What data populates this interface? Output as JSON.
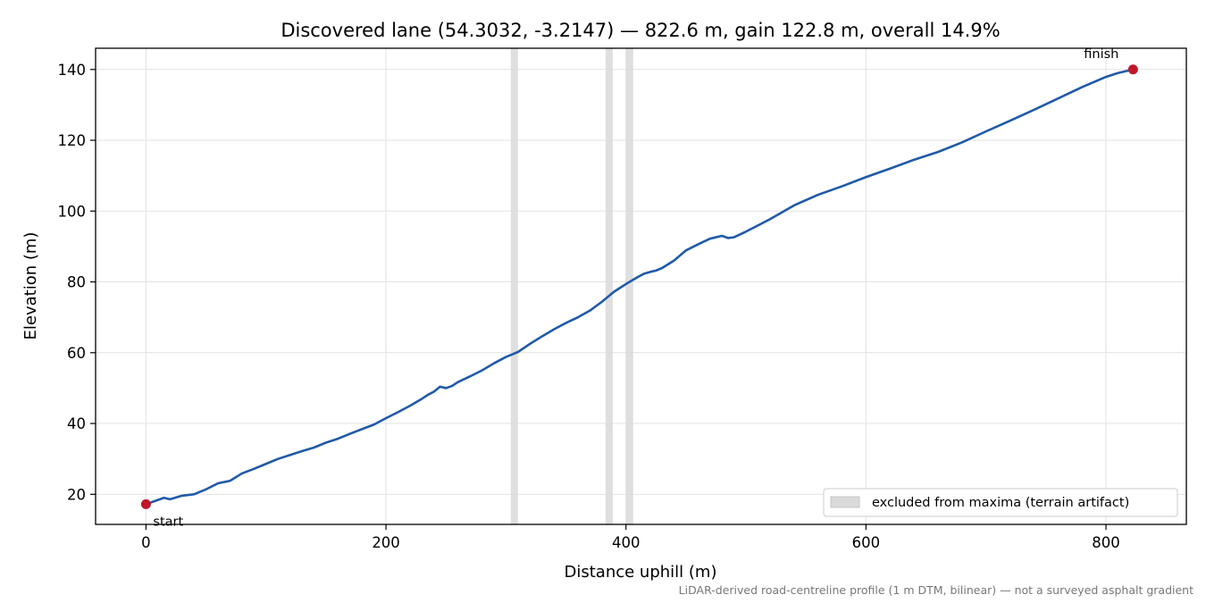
{
  "chart_data": {
    "type": "line",
    "title": "Discovered lane (54.3032, -3.2147) — 822.6 m, gain 122.8 m, overall 14.9%",
    "xlabel": "Distance uphill (m)",
    "ylabel": "Elevation (m)",
    "xlim": [
      -42,
      867
    ],
    "ylim": [
      11.5,
      146
    ],
    "xticks": [
      0,
      200,
      400,
      600,
      800
    ],
    "yticks": [
      20,
      40,
      60,
      80,
      100,
      120,
      140
    ],
    "grid": true,
    "legend": {
      "placement": "lower-right",
      "entries": [
        "excluded from maxima (terrain artifact)"
      ]
    },
    "footnote": "LiDAR-derived road-centreline profile (1 m DTM, bilinear) — not a surveyed asphalt gradient",
    "colors": {
      "line": "#1f5aa8",
      "endpoint": "#c0182a",
      "excluded_band": "#d9d9d9",
      "grid": "#e2e2e2"
    },
    "excluded_ranges": [
      [
        304,
        310
      ],
      [
        383,
        389
      ],
      [
        400,
        406
      ]
    ],
    "endpoints": [
      {
        "label": "start",
        "x": 0,
        "y": 17.2
      },
      {
        "label": "finish",
        "x": 822.6,
        "y": 140.0
      }
    ],
    "series": [
      {
        "x": [
          0,
          10,
          15,
          20,
          30,
          40,
          50,
          60,
          70,
          80,
          90,
          100,
          110,
          120,
          130,
          140,
          150,
          160,
          170,
          180,
          190,
          200,
          210,
          220,
          230,
          235,
          240,
          245,
          250,
          255,
          260,
          270,
          280,
          290,
          300,
          305,
          310,
          320,
          330,
          340,
          350,
          360,
          370,
          380,
          390,
          400,
          410,
          415,
          420,
          425,
          430,
          440,
          450,
          460,
          470,
          480,
          485,
          490,
          500,
          520,
          540,
          560,
          580,
          600,
          620,
          640,
          660,
          680,
          700,
          720,
          740,
          760,
          780,
          800,
          810,
          822.6
        ],
        "y": [
          17.2,
          18.4,
          19.0,
          18.6,
          19.6,
          20.0,
          21.4,
          23.1,
          23.8,
          25.9,
          27.2,
          28.6,
          30.0,
          31.1,
          32.2,
          33.2,
          34.6,
          35.7,
          37.1,
          38.4,
          39.7,
          41.5,
          43.2,
          45.0,
          47.0,
          48.1,
          49.0,
          50.4,
          50.0,
          50.6,
          51.7,
          53.3,
          55.0,
          57.0,
          58.8,
          59.5,
          60.2,
          62.5,
          64.6,
          66.6,
          68.4,
          70.0,
          71.9,
          74.4,
          77.2,
          79.4,
          81.4,
          82.3,
          82.8,
          83.2,
          83.9,
          86.0,
          88.9,
          90.6,
          92.2,
          93.0,
          92.4,
          92.6,
          94.2,
          97.7,
          101.6,
          104.6,
          107.0,
          109.6,
          112.0,
          114.5,
          116.7,
          119.4,
          122.5,
          125.5,
          128.6,
          131.8,
          135.0,
          137.9,
          139.0,
          140.0
        ]
      }
    ]
  }
}
